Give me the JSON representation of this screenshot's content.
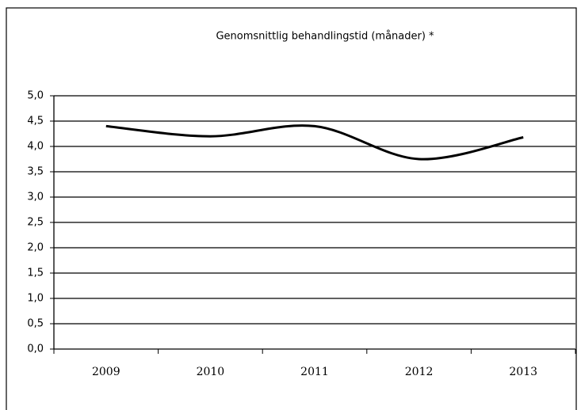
{
  "chart_data": {
    "type": "line",
    "title": "Genomsnittlig behandlingstid (månader) *",
    "categories": [
      "2009",
      "2010",
      "2011",
      "2012",
      "2013"
    ],
    "series": [
      {
        "name": "Genomsnittlig behandlingstid",
        "color": "#000000",
        "values": [
          4.4,
          4.2,
          4.4,
          3.75,
          4.18
        ]
      }
    ],
    "ylim": [
      0,
      5
    ],
    "yticks": [
      {
        "value": 0,
        "label": "0,0"
      },
      {
        "value": 0.5,
        "label": "0,5"
      },
      {
        "value": 1,
        "label": "1,0"
      },
      {
        "value": 1.5,
        "label": "1,5"
      },
      {
        "value": 2,
        "label": "2,0"
      },
      {
        "value": 2.5,
        "label": "2,5"
      },
      {
        "value": 3,
        "label": "3,0"
      },
      {
        "value": 3.5,
        "label": "3,5"
      },
      {
        "value": 4,
        "label": "4,0"
      },
      {
        "value": 4.5,
        "label": "4,5"
      },
      {
        "value": 5,
        "label": "5,0"
      }
    ],
    "grid": true
  }
}
